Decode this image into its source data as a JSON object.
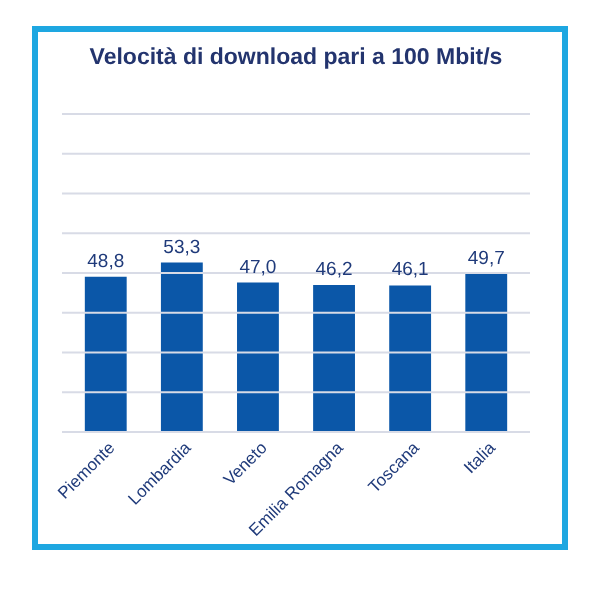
{
  "chart_data": {
    "type": "bar",
    "title": "Velocità di download pari a 100 Mbit/s",
    "categories": [
      "Piemonte",
      "Lombardia",
      "Veneto",
      "Emilia Romagna",
      "Toscana",
      "Italia"
    ],
    "values": [
      48.8,
      53.3,
      47.0,
      46.2,
      46.1,
      49.7
    ],
    "value_labels": [
      "48,8",
      "53,3",
      "47,0",
      "46,2",
      "46,1",
      "49,7"
    ],
    "color": "#0b57a8",
    "ylim": [
      0,
      100
    ],
    "yticks": [
      {
        "value": 0,
        "label": null
      },
      {
        "value": 12.5,
        "label": null
      },
      {
        "value": 25,
        "label": null
      },
      {
        "value": 37.5,
        "label": null
      },
      {
        "value": 50,
        "label": null
      },
      {
        "value": 62.5,
        "label": null
      },
      {
        "value": 75,
        "label": null
      },
      {
        "value": 87.5,
        "label": null
      },
      {
        "value": 100,
        "label": null
      }
    ],
    "grid": "y",
    "tick_labels": "x"
  }
}
